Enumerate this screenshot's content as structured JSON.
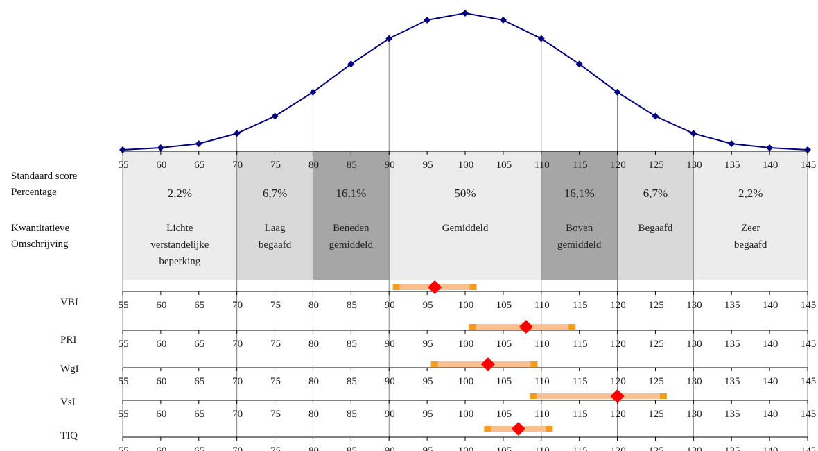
{
  "chart_data": {
    "type": "line",
    "x_ticks": [
      55,
      60,
      65,
      70,
      75,
      80,
      85,
      90,
      95,
      100,
      105,
      110,
      115,
      120,
      125,
      130,
      135,
      140,
      145
    ],
    "curve": {
      "x": [
        55,
        60,
        65,
        70,
        75,
        80,
        85,
        90,
        95,
        100,
        105,
        110,
        115,
        120,
        125,
        130,
        135,
        140,
        145
      ],
      "y": [
        0.1,
        0.4,
        1.0,
        2.5,
        5.0,
        8.5,
        12.6,
        16.3,
        19.0,
        20.0,
        19.0,
        16.3,
        12.6,
        8.5,
        5.0,
        2.5,
        1.0,
        0.4,
        0.1
      ]
    },
    "row_labels": {
      "standaard_score": "Standaard score",
      "percentage": "Percentage",
      "kwantitatieve_1": "Kwantitatieve",
      "kwantitatieve_2": "Omschrijving"
    },
    "bands": [
      {
        "from": 55,
        "to": 70,
        "percentage": "2,2%",
        "description": [
          "Lichte",
          "verstandelijke",
          "beperking"
        ],
        "shade": "#ececec"
      },
      {
        "from": 70,
        "to": 80,
        "percentage": "6,7%",
        "description": [
          "Laag",
          "begaafd"
        ],
        "shade": "#d9d9d9"
      },
      {
        "from": 80,
        "to": 90,
        "percentage": "16,1%",
        "description": [
          "Beneden",
          "gemiddeld"
        ],
        "shade": "#a6a6a6"
      },
      {
        "from": 90,
        "to": 110,
        "percentage": "50%",
        "description": [
          "Gemiddeld"
        ],
        "shade": "#ececec"
      },
      {
        "from": 110,
        "to": 120,
        "percentage": "16,1%",
        "description": [
          "Boven",
          "gemiddeld"
        ],
        "shade": "#a6a6a6"
      },
      {
        "from": 120,
        "to": 130,
        "percentage": "6,7%",
        "description": [
          "Begaafd"
        ],
        "shade": "#d9d9d9"
      },
      {
        "from": 130,
        "to": 145,
        "percentage": "2,2%",
        "description": [
          "Zeer",
          "begaafd"
        ],
        "shade": "#ececec"
      }
    ],
    "scores": [
      {
        "name": "VBI",
        "score": 96,
        "ci": [
          90.5,
          101.5
        ]
      },
      {
        "name": "PRI",
        "score": 108,
        "ci": [
          100.5,
          114.5
        ]
      },
      {
        "name": "WgI",
        "score": 103,
        "ci": [
          95.5,
          109.5
        ]
      },
      {
        "name": "VsI",
        "score": 120,
        "ci": [
          108.5,
          126.5
        ]
      },
      {
        "name": "TIQ",
        "score": 107,
        "ci": [
          102.5,
          111.5
        ]
      }
    ],
    "colors": {
      "curve": "#000080",
      "ci_bar": "#fac090",
      "ci_end": "#f79b1a",
      "score_marker": "#ff0000",
      "grid": "#808080"
    }
  }
}
